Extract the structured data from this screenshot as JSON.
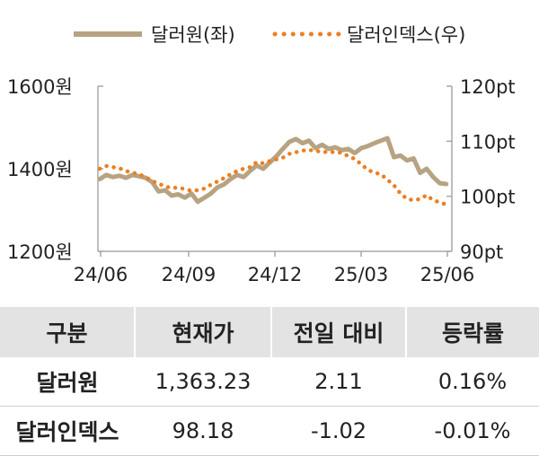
{
  "chart_data": {
    "type": "line",
    "legend_position": "top",
    "grid": false,
    "x_ticks": [
      "24/06",
      "24/09",
      "24/12",
      "25/03",
      "25/06"
    ],
    "y_left": {
      "range": [
        1200,
        1600
      ],
      "ticks": [
        "1200원",
        "1400원",
        "1600원"
      ]
    },
    "y_right": {
      "range": [
        90,
        120
      ],
      "ticks": [
        "90pt",
        "100pt",
        "110pt",
        "120pt"
      ]
    },
    "series": [
      {
        "name": "달러원(좌)",
        "axis": "left",
        "color": "#b7a382",
        "style": "solid",
        "x": [
          "2024-06-03",
          "2024-06-10",
          "2024-06-17",
          "2024-06-24",
          "2024-07-01",
          "2024-07-08",
          "2024-07-15",
          "2024-07-22",
          "2024-07-29",
          "2024-08-05",
          "2024-08-12",
          "2024-08-19",
          "2024-08-26",
          "2024-09-02",
          "2024-09-09",
          "2024-09-16",
          "2024-09-23",
          "2024-09-30",
          "2024-10-07",
          "2024-10-14",
          "2024-10-21",
          "2024-10-28",
          "2024-11-04",
          "2024-11-11",
          "2024-11-18",
          "2024-11-25",
          "2024-12-02",
          "2024-12-09",
          "2024-12-16",
          "2024-12-23",
          "2024-12-30",
          "2025-01-06",
          "2025-01-13",
          "2025-01-20",
          "2025-01-27",
          "2025-02-03",
          "2025-02-10",
          "2025-02-17",
          "2025-02-24",
          "2025-03-03",
          "2025-03-10",
          "2025-03-17",
          "2025-03-24",
          "2025-03-31",
          "2025-04-07",
          "2025-04-14",
          "2025-04-21",
          "2025-04-28",
          "2025-05-05",
          "2025-05-12",
          "2025-05-19",
          "2025-05-26",
          "2025-06-02",
          "2025-06-09"
        ],
        "y": [
          1375,
          1385,
          1380,
          1383,
          1378,
          1385,
          1382,
          1378,
          1368,
          1345,
          1348,
          1335,
          1338,
          1330,
          1340,
          1320,
          1330,
          1340,
          1355,
          1362,
          1375,
          1385,
          1380,
          1395,
          1408,
          1400,
          1415,
          1430,
          1448,
          1465,
          1472,
          1462,
          1468,
          1450,
          1458,
          1448,
          1452,
          1445,
          1448,
          1438,
          1450,
          1455,
          1462,
          1468,
          1474,
          1428,
          1432,
          1420,
          1425,
          1390,
          1400,
          1380,
          1365,
          1363
        ]
      },
      {
        "name": "달러인덱스(우)",
        "axis": "right",
        "color": "#ec7f22",
        "style": "dotted",
        "x": [
          "2024-06-03",
          "2024-06-10",
          "2024-06-17",
          "2024-06-24",
          "2024-07-01",
          "2024-07-08",
          "2024-07-15",
          "2024-07-22",
          "2024-07-29",
          "2024-08-05",
          "2024-08-12",
          "2024-08-19",
          "2024-08-26",
          "2024-09-02",
          "2024-09-09",
          "2024-09-16",
          "2024-09-23",
          "2024-09-30",
          "2024-10-07",
          "2024-10-14",
          "2024-10-21",
          "2024-10-28",
          "2024-11-04",
          "2024-11-11",
          "2024-11-18",
          "2024-11-25",
          "2024-12-02",
          "2024-12-09",
          "2024-12-16",
          "2024-12-23",
          "2024-12-30",
          "2025-01-06",
          "2025-01-13",
          "2025-01-20",
          "2025-01-27",
          "2025-02-03",
          "2025-02-10",
          "2025-02-17",
          "2025-02-24",
          "2025-03-03",
          "2025-03-10",
          "2025-03-17",
          "2025-03-24",
          "2025-03-31",
          "2025-04-07",
          "2025-04-14",
          "2025-04-21",
          "2025-04-28",
          "2025-05-05",
          "2025-05-12",
          "2025-05-19",
          "2025-05-26",
          "2025-06-02",
          "2025-06-09"
        ],
        "y": [
          105.0,
          105.5,
          105.3,
          105.1,
          104.6,
          104.3,
          104.0,
          103.5,
          102.8,
          102.3,
          101.8,
          101.5,
          101.6,
          101.3,
          101.0,
          101.1,
          101.4,
          102.1,
          102.7,
          103.3,
          104.0,
          104.6,
          105.0,
          105.3,
          106.2,
          106.0,
          106.4,
          106.7,
          107.0,
          107.7,
          108.0,
          108.3,
          108.4,
          108.3,
          108.0,
          108.1,
          108.0,
          107.9,
          107.3,
          106.8,
          105.8,
          104.8,
          104.3,
          104.0,
          103.0,
          102.0,
          100.5,
          99.5,
          99.3,
          99.5,
          100.2,
          99.3,
          98.9,
          98.5
        ]
      }
    ]
  },
  "table": {
    "headers": [
      "구분",
      "현재가",
      "전일 대비",
      "등락률"
    ],
    "rows": [
      [
        "달러원",
        "1,363.23",
        "2.11",
        "0.16%"
      ],
      [
        "달러인덱스",
        "98.18",
        "-1.02",
        "-0.01%"
      ]
    ]
  }
}
